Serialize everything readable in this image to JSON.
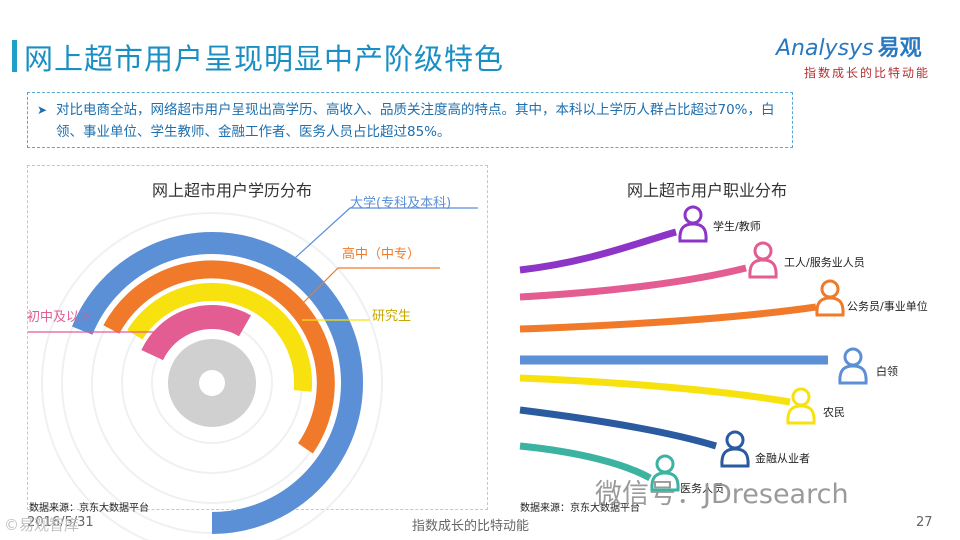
{
  "title": "网上超市用户呈现明显中产阶级特色",
  "logo": {
    "text": "Analysys",
    "cn": "易观",
    "slogan": "指数成长的比特动能"
  },
  "summary": "对比电商全站，网络超市用户呈现出高学历、高收入、品质关注度高的特点。其中，本科以上学历人群占比超过70%，白领、事业单位、学生教师、金融工作者、医务人员占比超过85%。",
  "colors": {
    "blue": "#5b8fd6",
    "orange": "#f07a2a",
    "yellow": "#f7e210",
    "pink": "#e35c92",
    "gray": "#d0d0d0",
    "purple": "#8c35c7",
    "green": "#3bb3a0",
    "navy": "#2a5aa0",
    "title": "#1a8fc4"
  },
  "chart_data": [
    {
      "type": "radial-bar",
      "title": "网上超市用户学历分布",
      "series": [
        {
          "name": "大学(专科及本科)",
          "color": "blue"
        },
        {
          "name": "高中（中专）",
          "color": "orange"
        },
        {
          "name": "研究生",
          "color": "yellow"
        },
        {
          "name": "初中及以下",
          "color": "pink"
        }
      ]
    },
    {
      "type": "occupation-lines",
      "title": "网上超市用户职业分布",
      "categories": [
        "学生/教师",
        "工人/服务业人员",
        "公务员/事业单位",
        "白领",
        "农民",
        "金融从业者",
        "医务人员"
      ],
      "colors": [
        "purple",
        "pink",
        "orange",
        "blue",
        "yellow",
        "navy",
        "green"
      ]
    }
  ],
  "source_left": "数据来源：京东大数据平台",
  "source_right": "数据来源：京东大数据平台",
  "footer": {
    "date": "2016/5/31",
    "center": "指数成长的比特动能",
    "page": "27"
  },
  "watermark": "微信号：JDresearch",
  "corner_mark": "©易观智库"
}
